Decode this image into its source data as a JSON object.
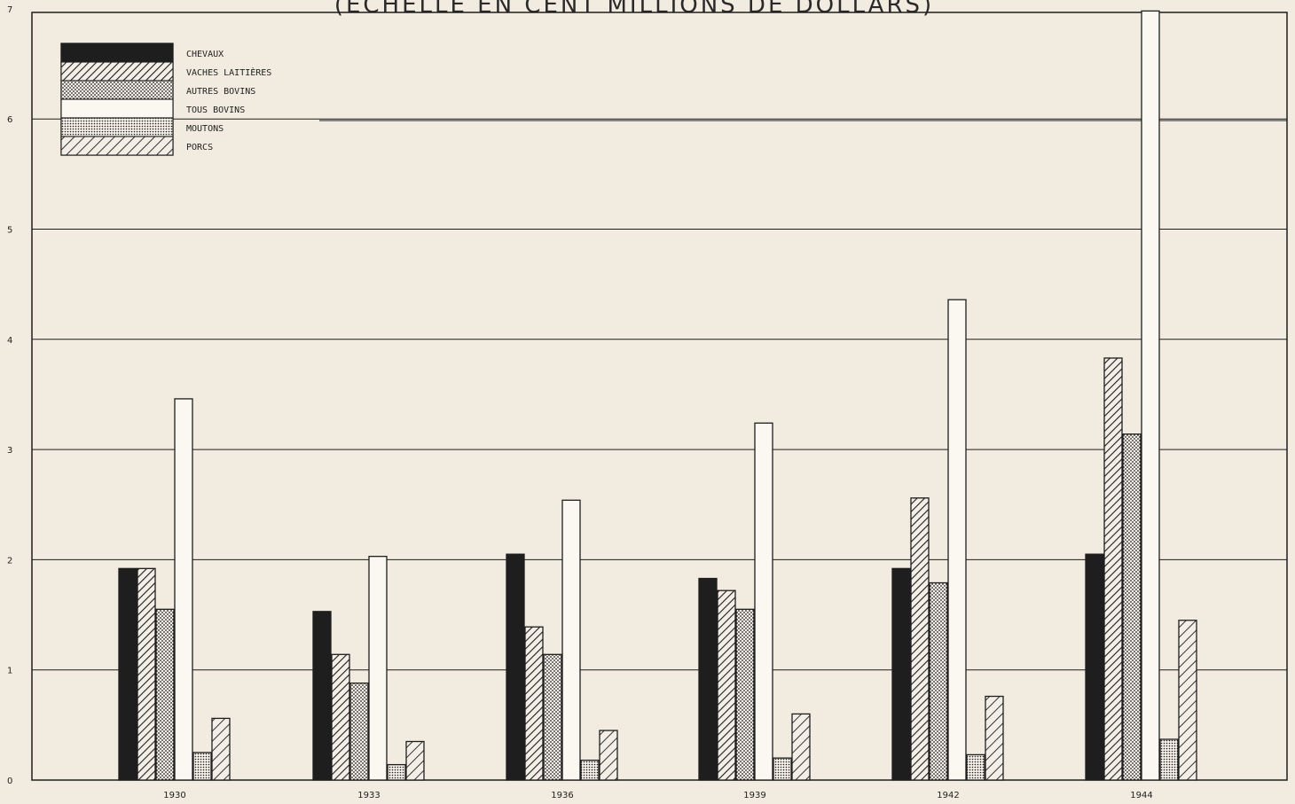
{
  "title": "(ÉCHELLE EN CENT MILLIONS DE DOLLARS)",
  "colors": {
    "background": "#f1ebe0",
    "ink": "#1e1e1e"
  },
  "chart_data": {
    "type": "bar",
    "title": "(ÉCHELLE EN CENT MILLIONS DE DOLLARS)",
    "xlabel": "",
    "ylabel": "",
    "categories": [
      "1930",
      "1933",
      "1936",
      "1939",
      "1942",
      "1944"
    ],
    "ylim": [
      0,
      7
    ],
    "yticks": [
      "0",
      "1",
      "2",
      "3",
      "4",
      "5",
      "6",
      "7"
    ],
    "grid": true,
    "legend_position": "top-left",
    "series": [
      {
        "name": "CHEVAUX",
        "pattern": "solid-black",
        "values": [
          1.92,
          1.53,
          2.05,
          1.83,
          1.92,
          2.05
        ]
      },
      {
        "name": "VACHES LAITIÈRES",
        "pattern": "diagonal-hatch",
        "values": [
          1.92,
          1.14,
          1.39,
          1.72,
          2.56,
          3.83
        ]
      },
      {
        "name": "AUTRES BOVINS",
        "pattern": "dotted",
        "values": [
          1.55,
          0.88,
          1.14,
          1.55,
          1.79,
          3.14
        ]
      },
      {
        "name": "TOUS BOVINS",
        "pattern": "white",
        "values": [
          3.46,
          2.03,
          2.54,
          3.24,
          4.36,
          6.98
        ]
      },
      {
        "name": "MOUTONS",
        "pattern": "fine-dotted",
        "values": [
          0.25,
          0.14,
          0.18,
          0.2,
          0.23,
          0.37
        ]
      },
      {
        "name": "PORCS",
        "pattern": "diagonal-hatch-wide",
        "values": [
          0.56,
          0.35,
          0.45,
          0.6,
          0.76,
          1.45
        ]
      }
    ]
  }
}
